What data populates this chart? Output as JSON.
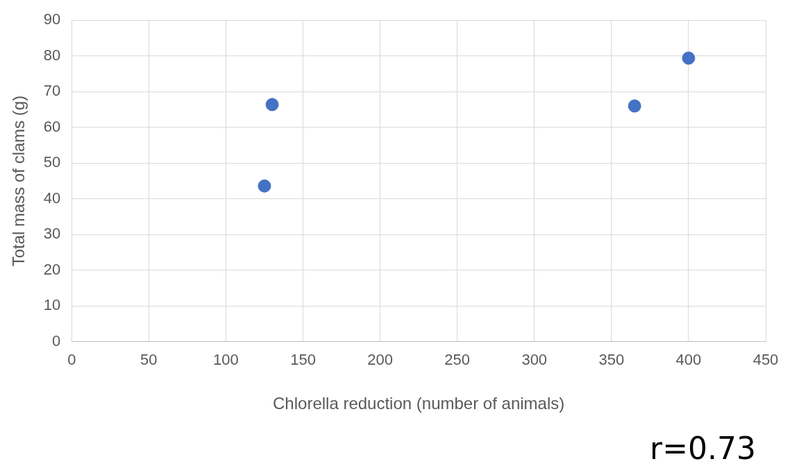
{
  "chart_data": {
    "type": "scatter",
    "xlabel": "Chlorella reduction (number of animals)",
    "ylabel": "Total mass of clams (g)",
    "x": [
      125,
      130,
      365,
      400
    ],
    "values": [
      43.6,
      66.4,
      66,
      79.4
    ],
    "color": "#4472c4",
    "marker": "circle",
    "grid": true,
    "xlim": [
      0,
      450
    ],
    "xticks": [
      0,
      50,
      100,
      150,
      200,
      250,
      300,
      350,
      400,
      450
    ],
    "ylim": [
      0,
      90
    ],
    "yticks": [
      0,
      10,
      20,
      30,
      40,
      50,
      60,
      70,
      80,
      90
    ],
    "annotations": [
      "r=0.73"
    ]
  }
}
